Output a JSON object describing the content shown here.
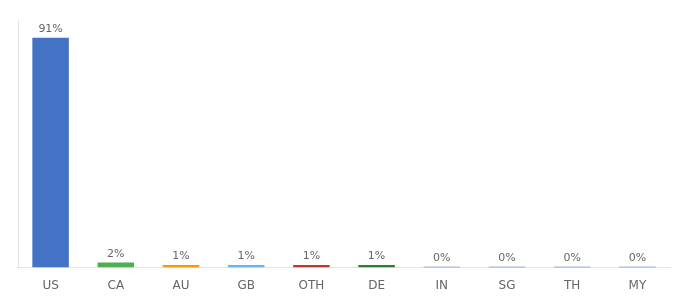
{
  "chart_data": {
    "type": "bar",
    "categories": [
      "US",
      "CA",
      "AU",
      "GB",
      "OTH",
      "DE",
      "IN",
      "SG",
      "TH",
      "MY"
    ],
    "values": [
      91,
      2,
      1,
      1,
      1,
      1,
      0.3,
      0.3,
      0.3,
      0.3
    ],
    "value_labels": [
      "91%",
      "2%",
      "1%",
      "1%",
      "1%",
      "1%",
      "0%",
      "0%",
      "0%",
      "0%"
    ],
    "colors": [
      "#4472c4",
      "#4caf50",
      "#ff9800",
      "#64b5f6",
      "#c0392b",
      "#2e7d32",
      "#4472c4",
      "#4472c4",
      "#4472c4",
      "#4472c4"
    ],
    "ylim": [
      0,
      98
    ],
    "grid": false,
    "data_labels": true,
    "tick_labels": "x"
  }
}
